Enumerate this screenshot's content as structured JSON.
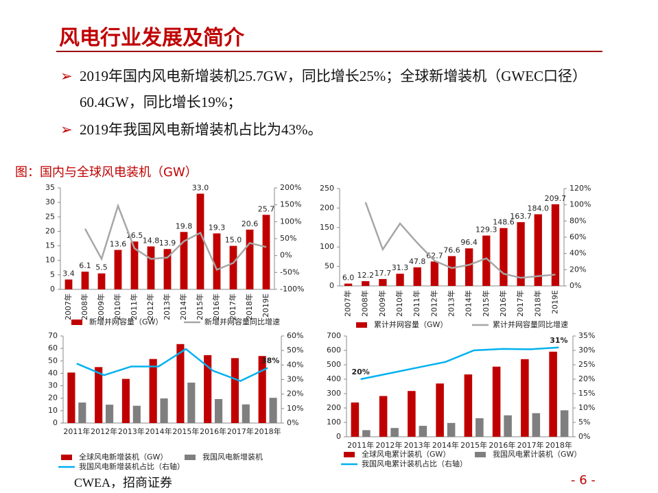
{
  "title": "风电行业发展及简介",
  "bullets": [
    "2019年国内风电新增装机25.7GW，同比增长25%；全球新增装机（GWEC口径）60.4GW，同比增长19%；",
    "2019年我国风电新增装机占比为43%。"
  ],
  "caption": "图：国内与全球风电装机（GW）",
  "source": "CWEA，招商证券",
  "page": "- 6 -",
  "chart_data": [
    {
      "type": "bar",
      "categories": [
        "2007年",
        "2008年",
        "2009年",
        "2010年",
        "2011年",
        "2012年",
        "2013年",
        "2014年",
        "2015年",
        "2016年",
        "2017年",
        "2018年",
        "2019E"
      ],
      "series": [
        {
          "name": "新增并网容量（GW）",
          "color": "#c00000",
          "values": [
            3.4,
            6.1,
            5.5,
            13.6,
            16.5,
            14.8,
            13.9,
            19.8,
            33.0,
            19.3,
            15.0,
            20.6,
            25.7
          ],
          "value_labels": [
            "3.4",
            "6.1",
            "5.5",
            "13.6",
            "16.5",
            "14.8",
            "13.9",
            "19.8",
            "33.0",
            "19.3",
            "15.0",
            "20.6",
            "25.7"
          ]
        },
        {
          "name": "新增并网容量同比增速",
          "color": "#a6a6a6",
          "type": "line",
          "axis": "y2",
          "values": [
            null,
            79,
            -10,
            147,
            21,
            -10,
            -6,
            42,
            67,
            -42,
            -22,
            37,
            25
          ]
        }
      ],
      "ylim": [
        0,
        35
      ],
      "yticks": [
        0,
        5,
        10,
        15,
        20,
        25,
        30,
        35
      ],
      "y2lim": [
        -100,
        200
      ],
      "y2ticks": [
        {
          "value": -100,
          "label": "-100%"
        },
        {
          "value": -50,
          "label": "-50%"
        },
        {
          "value": 0,
          "label": "0%"
        },
        {
          "value": 50,
          "label": "50%"
        },
        {
          "value": 100,
          "label": "100%"
        },
        {
          "value": 150,
          "label": "150%"
        },
        {
          "value": 200,
          "label": "200%"
        }
      ]
    },
    {
      "type": "bar",
      "categories": [
        "2007年",
        "2008年",
        "2009年",
        "2010年",
        "2011年",
        "2012年",
        "2013年",
        "2014年",
        "2015年",
        "2016年",
        "2017年",
        "2018年",
        "2019E"
      ],
      "series": [
        {
          "name": "累计并网容量（GW）",
          "color": "#c00000",
          "values": [
            6.0,
            12.2,
            17.7,
            31.3,
            47.8,
            62.7,
            76.6,
            96.4,
            129.3,
            148.6,
            163.7,
            184.0,
            209.7
          ],
          "value_labels": [
            "6.0",
            "12.2",
            "17.7",
            "31.3",
            "47.8",
            "62.7",
            "76.6",
            "96.4",
            "129.3",
            "148.6",
            "163.7",
            "184.0",
            "209.7"
          ]
        },
        {
          "name": "累计并网容量同比增速",
          "color": "#a6a6a6",
          "type": "line",
          "axis": "y2",
          "values": [
            null,
            103,
            45,
            77,
            53,
            31,
            22,
            26,
            34,
            15,
            10,
            12,
            14
          ]
        }
      ],
      "ylim": [
        0,
        250
      ],
      "yticks": [
        0,
        50,
        100,
        150,
        200,
        250
      ],
      "y2lim": [
        0,
        120
      ],
      "y2ticks": [
        {
          "value": 0,
          "label": "0%"
        },
        {
          "value": 20,
          "label": "20%"
        },
        {
          "value": 40,
          "label": "40%"
        },
        {
          "value": 60,
          "label": "60%"
        },
        {
          "value": 80,
          "label": "80%"
        },
        {
          "value": 100,
          "label": "100%"
        },
        {
          "value": 120,
          "label": "120%"
        }
      ]
    },
    {
      "type": "bar",
      "categories": [
        "2011年",
        "2012年",
        "2013年",
        "2014年",
        "2015年",
        "2016年",
        "2017年",
        "2018年"
      ],
      "series": [
        {
          "name": "全球风电新增装机（GW）",
          "color": "#c00000",
          "values": [
            40.6,
            45.0,
            35.5,
            51.5,
            63.5,
            54.6,
            52.2,
            53.9
          ]
        },
        {
          "name": "我国风电新增装机",
          "color": "#7f7f7f",
          "values": [
            16.5,
            14.8,
            13.9,
            19.8,
            32.5,
            19.3,
            15.0,
            20.3
          ]
        },
        {
          "name": "我国风电新增装机占比（右轴）",
          "color": "#00b0f0",
          "type": "line",
          "axis": "y2",
          "values": [
            41,
            33,
            39,
            39,
            51,
            36,
            29,
            38
          ],
          "value_labels": [
            null,
            null,
            null,
            null,
            null,
            null,
            null,
            "38%"
          ]
        }
      ],
      "ylim": [
        0,
        70
      ],
      "yticks": [
        0,
        10,
        20,
        30,
        40,
        50,
        60,
        70
      ],
      "y2lim": [
        0,
        60
      ],
      "y2ticks": [
        {
          "value": 0,
          "label": "0%"
        },
        {
          "value": 10,
          "label": "10%"
        },
        {
          "value": 20,
          "label": "20%"
        },
        {
          "value": 30,
          "label": "30%"
        },
        {
          "value": 40,
          "label": "40%"
        },
        {
          "value": 50,
          "label": "50%"
        },
        {
          "value": 60,
          "label": "60%"
        }
      ]
    },
    {
      "type": "bar",
      "categories": [
        "2011年",
        "2012年",
        "2013年",
        "2014年",
        "2015年",
        "2016年",
        "2017年",
        "2018年"
      ],
      "series": [
        {
          "name": "全球风电累计装机（GW）",
          "color": "#c00000",
          "values": [
            238,
            283,
            318,
            370,
            433,
            487,
            539,
            591
          ]
        },
        {
          "name": "我国风电累计装机（GW）",
          "color": "#7f7f7f",
          "values": [
            46,
            61,
            76,
            96,
            129,
            149,
            164,
            184
          ]
        },
        {
          "name": "我国风电累计装机占比（右轴）",
          "color": "#00b0f0",
          "type": "line",
          "axis": "y2",
          "values": [
            20,
            22,
            24,
            26,
            30,
            30.5,
            30.4,
            31
          ],
          "value_labels": [
            "20%",
            null,
            null,
            null,
            null,
            null,
            null,
            "31%"
          ]
        }
      ],
      "ylim": [
        0,
        700
      ],
      "yticks": [
        0,
        100,
        200,
        300,
        400,
        500,
        600,
        700
      ],
      "y2lim": [
        0,
        35
      ],
      "y2ticks": [
        {
          "value": 0,
          "label": "0%"
        },
        {
          "value": 5,
          "label": "5%"
        },
        {
          "value": 10,
          "label": "10%"
        },
        {
          "value": 15,
          "label": "15%"
        },
        {
          "value": 20,
          "label": "20%"
        },
        {
          "value": 25,
          "label": "25%"
        },
        {
          "value": 30,
          "label": "30%"
        },
        {
          "value": 35,
          "label": "35%"
        }
      ]
    }
  ]
}
